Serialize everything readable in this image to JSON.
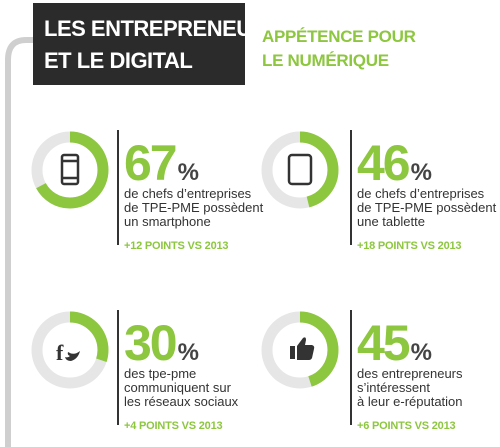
{
  "header": {
    "title": [
      "LES ENTREPRENEURS",
      "ET LE DIGITAL"
    ],
    "subtitle": [
      "APPÉTENCE POUR",
      "LE NUMÉRIQUE"
    ]
  },
  "stats": [
    {
      "value": 67,
      "unit": "%",
      "description": [
        "de chefs d’entreprises",
        "de TPE-PME possèdent",
        "un smartphone"
      ],
      "change": "+12 POINTS VS 2013"
    },
    {
      "value": 46,
      "unit": "%",
      "description": [
        "de chefs d’entreprises",
        "de TPE-PME possèdent",
        "une tablette"
      ],
      "change": "+18 POINTS VS 2013"
    },
    {
      "value": 30,
      "unit": "%",
      "description": [
        "des tpe-pme",
        "communiquent sur",
        "les réseaux sociaux"
      ],
      "change": "+4 POINTS VS 2013"
    },
    {
      "value": 45,
      "unit": "%",
      "description": [
        "des entrepreneurs",
        "s’intéressent",
        "à leur e-réputation"
      ],
      "change": "+6 POINTS VS 2013"
    }
  ]
}
